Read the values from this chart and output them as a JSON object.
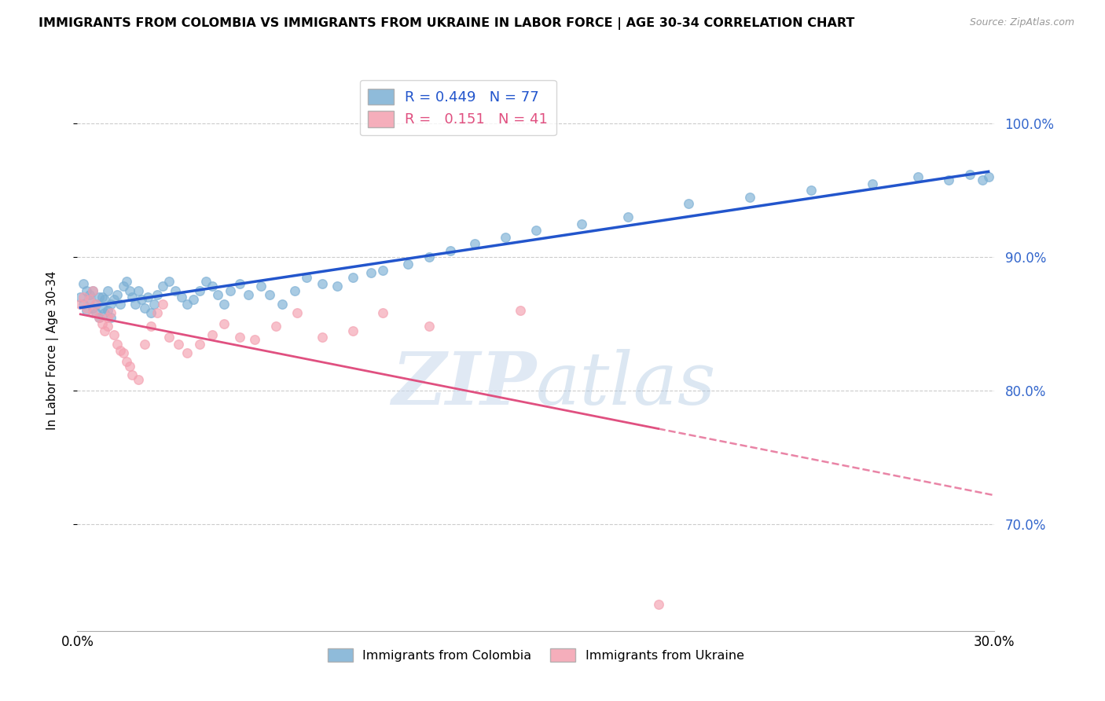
{
  "title": "IMMIGRANTS FROM COLOMBIA VS IMMIGRANTS FROM UKRAINE IN LABOR FORCE | AGE 30-34 CORRELATION CHART",
  "source": "Source: ZipAtlas.com",
  "ylabel": "In Labor Force | Age 30-34",
  "xlim": [
    0.0,
    0.3
  ],
  "ylim": [
    0.62,
    1.04
  ],
  "yticks": [
    0.7,
    0.8,
    0.9,
    1.0
  ],
  "ytick_labels": [
    "70.0%",
    "80.0%",
    "90.0%",
    "100.0%"
  ],
  "xticks": [
    0.0,
    0.05,
    0.1,
    0.15,
    0.2,
    0.25,
    0.3
  ],
  "xtick_labels": [
    "0.0%",
    "",
    "",
    "",
    "",
    "",
    "30.0%"
  ],
  "colombia_R": 0.449,
  "colombia_N": 77,
  "ukraine_R": 0.151,
  "ukraine_N": 41,
  "colombia_color": "#7BAFD4",
  "ukraine_color": "#F4A0B0",
  "trendline_colombia_color": "#2255CC",
  "trendline_ukraine_color": "#E05080",
  "watermark_zip": "ZIP",
  "watermark_atlas": "atlas",
  "colombia_x": [
    0.001,
    0.002,
    0.002,
    0.003,
    0.003,
    0.004,
    0.004,
    0.005,
    0.005,
    0.006,
    0.006,
    0.007,
    0.007,
    0.008,
    0.008,
    0.009,
    0.009,
    0.01,
    0.01,
    0.011,
    0.011,
    0.012,
    0.013,
    0.014,
    0.015,
    0.016,
    0.017,
    0.018,
    0.019,
    0.02,
    0.021,
    0.022,
    0.023,
    0.024,
    0.025,
    0.026,
    0.028,
    0.03,
    0.032,
    0.034,
    0.036,
    0.038,
    0.04,
    0.042,
    0.044,
    0.046,
    0.048,
    0.05,
    0.053,
    0.056,
    0.06,
    0.063,
    0.067,
    0.071,
    0.075,
    0.08,
    0.085,
    0.09,
    0.096,
    0.1,
    0.108,
    0.115,
    0.122,
    0.13,
    0.14,
    0.15,
    0.165,
    0.18,
    0.2,
    0.22,
    0.24,
    0.26,
    0.275,
    0.285,
    0.292,
    0.296,
    0.298
  ],
  "colombia_y": [
    0.87,
    0.88,
    0.865,
    0.875,
    0.86,
    0.872,
    0.868,
    0.875,
    0.862,
    0.858,
    0.865,
    0.87,
    0.855,
    0.862,
    0.87,
    0.858,
    0.868,
    0.86,
    0.875,
    0.865,
    0.855,
    0.868,
    0.872,
    0.865,
    0.878,
    0.882,
    0.875,
    0.87,
    0.865,
    0.875,
    0.868,
    0.862,
    0.87,
    0.858,
    0.865,
    0.872,
    0.878,
    0.882,
    0.875,
    0.87,
    0.865,
    0.868,
    0.875,
    0.882,
    0.878,
    0.872,
    0.865,
    0.875,
    0.88,
    0.872,
    0.878,
    0.872,
    0.865,
    0.875,
    0.885,
    0.88,
    0.878,
    0.885,
    0.888,
    0.89,
    0.895,
    0.9,
    0.905,
    0.91,
    0.915,
    0.92,
    0.925,
    0.93,
    0.94,
    0.945,
    0.95,
    0.955,
    0.96,
    0.958,
    0.962,
    0.958,
    0.96
  ],
  "ukraine_x": [
    0.001,
    0.002,
    0.003,
    0.004,
    0.005,
    0.005,
    0.006,
    0.007,
    0.008,
    0.009,
    0.01,
    0.01,
    0.011,
    0.012,
    0.013,
    0.014,
    0.015,
    0.016,
    0.017,
    0.018,
    0.02,
    0.022,
    0.024,
    0.026,
    0.028,
    0.03,
    0.033,
    0.036,
    0.04,
    0.044,
    0.048,
    0.053,
    0.058,
    0.065,
    0.072,
    0.08,
    0.09,
    0.1,
    0.115,
    0.145,
    0.19
  ],
  "ukraine_y": [
    0.865,
    0.87,
    0.862,
    0.868,
    0.875,
    0.858,
    0.865,
    0.855,
    0.85,
    0.845,
    0.855,
    0.848,
    0.858,
    0.842,
    0.835,
    0.83,
    0.828,
    0.822,
    0.818,
    0.812,
    0.808,
    0.835,
    0.848,
    0.858,
    0.865,
    0.84,
    0.835,
    0.828,
    0.835,
    0.842,
    0.85,
    0.84,
    0.838,
    0.848,
    0.858,
    0.84,
    0.845,
    0.858,
    0.848,
    0.86,
    0.64
  ],
  "ukraine_trend_x_end": 0.3
}
